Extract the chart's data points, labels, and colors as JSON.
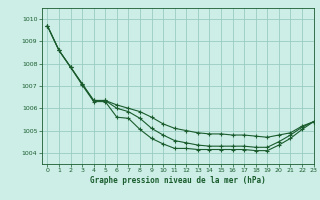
{
  "background_color": "#cceee6",
  "grid_color": "#99ccc2",
  "line_color": "#1a5c2e",
  "xlabel": "Graphe pression niveau de la mer (hPa)",
  "xlim": [
    -0.5,
    23
  ],
  "ylim": [
    1003.5,
    1010.5
  ],
  "yticks": [
    1004,
    1005,
    1006,
    1007,
    1008,
    1009,
    1010
  ],
  "xticks": [
    0,
    1,
    2,
    3,
    4,
    5,
    6,
    7,
    8,
    9,
    10,
    11,
    12,
    13,
    14,
    15,
    16,
    17,
    18,
    19,
    20,
    21,
    22,
    23
  ],
  "series": [
    [
      1009.7,
      1008.6,
      1007.85,
      1007.05,
      1006.3,
      1006.3,
      1005.6,
      1005.55,
      1005.05,
      1004.65,
      1004.4,
      1004.2,
      1004.2,
      1004.15,
      1004.15,
      1004.15,
      1004.15,
      1004.15,
      1004.1,
      1004.1,
      1004.35,
      1004.65,
      1005.05,
      1005.4
    ],
    [
      1009.7,
      1008.6,
      1007.85,
      1007.1,
      1006.35,
      1006.35,
      1006.0,
      1005.85,
      1005.55,
      1005.1,
      1004.8,
      1004.55,
      1004.45,
      1004.35,
      1004.3,
      1004.3,
      1004.3,
      1004.3,
      1004.25,
      1004.25,
      1004.5,
      1004.8,
      1005.15,
      1005.4
    ],
    [
      1009.7,
      1008.6,
      1007.85,
      1007.1,
      1006.35,
      1006.35,
      1006.15,
      1006.0,
      1005.85,
      1005.6,
      1005.3,
      1005.1,
      1005.0,
      1004.9,
      1004.85,
      1004.85,
      1004.8,
      1004.8,
      1004.75,
      1004.7,
      1004.8,
      1004.9,
      1005.2,
      1005.4
    ]
  ]
}
